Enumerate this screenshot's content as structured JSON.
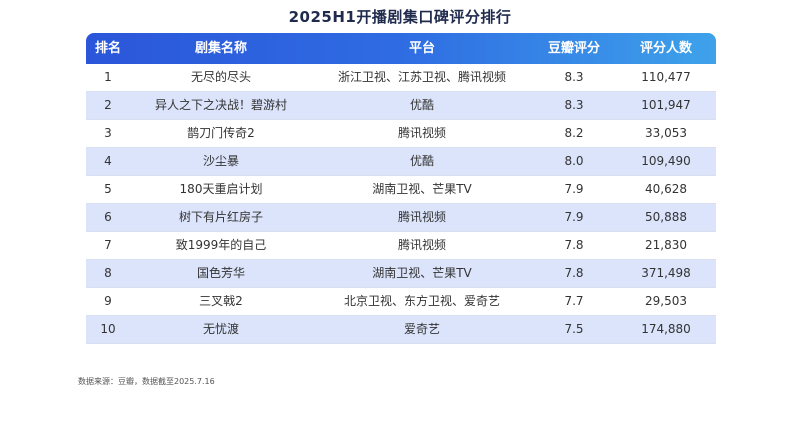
{
  "title": "2025H1开播剧集口碑评分排行",
  "headers": [
    "排名",
    "剧集名称",
    "平台",
    "豆瓣评分",
    "评分人数"
  ],
  "rows": [
    {
      "rank": "1",
      "name": "无尽的尽头",
      "platform": "浙江卫视、江苏卫视、腾讯视频",
      "score": "8.3",
      "count": "110,477"
    },
    {
      "rank": "2",
      "name": "异人之下之决战！碧游村",
      "platform": "优酷",
      "score": "8.3",
      "count": "101,947"
    },
    {
      "rank": "3",
      "name": "鹊刀门传奇2",
      "platform": "腾讯视频",
      "score": "8.2",
      "count": "33,053"
    },
    {
      "rank": "4",
      "name": "沙尘暴",
      "platform": "优酷",
      "score": "8.0",
      "count": "109,490"
    },
    {
      "rank": "5",
      "name": "180天重启计划",
      "platform": "湖南卫视、芒果TV",
      "score": "7.9",
      "count": "40,628"
    },
    {
      "rank": "6",
      "name": "树下有片红房子",
      "platform": "腾讯视频",
      "score": "7.9",
      "count": "50,888"
    },
    {
      "rank": "7",
      "name": "致1999年的自己",
      "platform": "腾讯视频",
      "score": "7.8",
      "count": "21,830"
    },
    {
      "rank": "8",
      "name": "国色芳华",
      "platform": "湖南卫视、芒果TV",
      "score": "7.8",
      "count": "371,498"
    },
    {
      "rank": "9",
      "name": "三叉戟2",
      "platform": "北京卫视、东方卫视、爱奇艺",
      "score": "7.7",
      "count": "29,503"
    },
    {
      "rank": "10",
      "name": "无忧渡",
      "platform": "爱奇艺",
      "score": "7.5",
      "count": "174,880"
    }
  ],
  "footnote": "数据来源：豆瓣，数据截至2025.7.16"
}
